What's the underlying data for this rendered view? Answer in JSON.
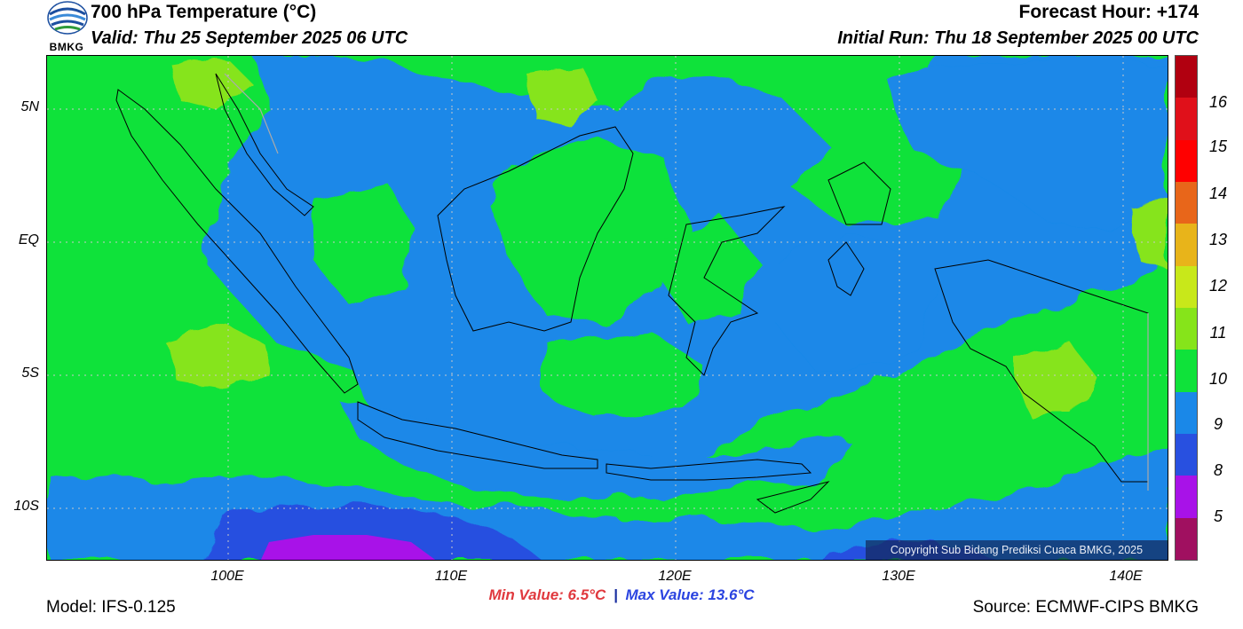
{
  "header": {
    "title": "700 hPa Temperature (°C)",
    "valid": "Valid: Thu 25 September 2025 06 UTC",
    "forecast_hour": "Forecast Hour: +174",
    "initial_run": "Initial Run: Thu 18 September 2025 00 UTC",
    "logo_text": "BMKG"
  },
  "map": {
    "y_axis_labels": [
      "5N",
      "EQ",
      "5S",
      "10S"
    ],
    "x_axis_labels": [
      "100E",
      "110E",
      "120E",
      "130E",
      "140E"
    ],
    "copyright": "Copyright Sub Bidang Prediksi Cuaca BMKG, 2025"
  },
  "colorbar": {
    "labels": [
      "16",
      "15",
      "14",
      "13",
      "12",
      "11",
      "10",
      "9",
      "8",
      "5"
    ],
    "colors": [
      "#b10010",
      "#e0101a",
      "#ff0000",
      "#e8661a",
      "#e8b41a",
      "#c8e81a",
      "#86e41a",
      "#0fe23a",
      "#1a88e8",
      "#2850e0",
      "#a812e8",
      "#a01060"
    ]
  },
  "stats": {
    "min": "Min Value: 6.5°C",
    "separator": "|",
    "max": "Max Value: 13.6°C"
  },
  "footer": {
    "model": "Model: IFS-0.125",
    "source": "Source: ECMWF-CIPS BMKG"
  },
  "palette": {
    "green_11": "#0fe23a",
    "blue_10": "#1a88e8",
    "lightgreen_12": "#86e41a",
    "darkblue_9": "#2850e0",
    "purple_8": "#a812e8"
  }
}
